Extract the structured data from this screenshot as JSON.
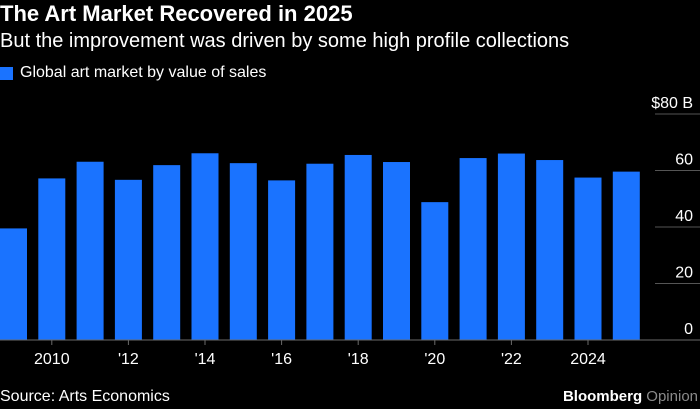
{
  "header": {
    "title": "The Art Market Recovered in 2025",
    "subtitle": "But the improvement was driven by some high profile collections"
  },
  "legend": {
    "label": "Global art market by value of sales"
  },
  "footer": {
    "source": "Source: Arts Economics",
    "brand_primary": "Bloomberg",
    "brand_secondary": "Opinion"
  },
  "colors": {
    "background": "#000000",
    "bar": "#1a73ff",
    "text": "#ffffff",
    "grid": "#555555"
  },
  "chart_data": {
    "type": "bar",
    "title": "The Art Market Recovered in 2025",
    "subtitle": "But the improvement was driven by some high profile collections",
    "xlabel": "",
    "ylabel": "",
    "ylim": [
      0,
      80
    ],
    "yticks": [
      0,
      20,
      40,
      60,
      80
    ],
    "ytick_labels": [
      "0",
      "20",
      "40",
      "60",
      "$80 B"
    ],
    "grid": true,
    "legend": "top-left",
    "categories": [
      2009,
      2010,
      2011,
      2012,
      2013,
      2014,
      2015,
      2016,
      2017,
      2018,
      2019,
      2020,
      2021,
      2022,
      2023,
      2024,
      2025
    ],
    "xtick_values": [
      2010,
      2012,
      2014,
      2016,
      2018,
      2020,
      2022,
      2024
    ],
    "xtick_labels": [
      "2010",
      "'12",
      "'14",
      "'16",
      "'18",
      "'20",
      "'22",
      "2024"
    ],
    "series": [
      {
        "name": "Global art market by value of sales",
        "values": [
          39.5,
          57.2,
          63.1,
          56.7,
          61.9,
          66.1,
          62.6,
          56.5,
          62.4,
          65.5,
          63.0,
          48.8,
          64.4,
          66.0,
          63.7,
          57.5,
          59.6
        ]
      }
    ]
  }
}
